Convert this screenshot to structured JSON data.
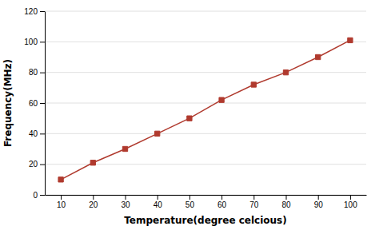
{
  "chart_data": {
    "type": "line",
    "x": [
      10,
      20,
      30,
      40,
      50,
      60,
      70,
      80,
      90,
      100
    ],
    "values": [
      10,
      21,
      30,
      40,
      50,
      62,
      72,
      80,
      90,
      101
    ],
    "color": "#b03a2e",
    "marker": "square",
    "xlabel": "Temperature(degree celcious)",
    "ylabel": "Frequency(MHz)",
    "xlim": [
      5,
      105
    ],
    "ylim": [
      0,
      120
    ],
    "xticks": [
      10,
      20,
      30,
      40,
      50,
      60,
      70,
      80,
      90,
      100
    ],
    "yticks": [
      0,
      20,
      40,
      60,
      80,
      100,
      120
    ],
    "grid": "y"
  }
}
